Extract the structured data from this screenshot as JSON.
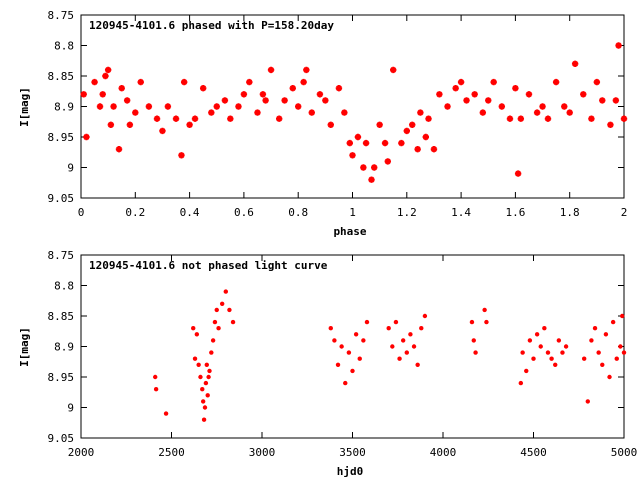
{
  "charts": [
    {
      "id": "phased",
      "title": "120945-4101.6 phased with P=158.20day",
      "xlabel": "phase",
      "ylabel": "I[mag]",
      "xticks": [
        "0",
        "0.2",
        "0.4",
        "0.6",
        "0.8",
        "1",
        "1.2",
        "1.4",
        "1.6",
        "1.8",
        "2"
      ],
      "yticks": [
        "8.75",
        "8.8",
        "8.85",
        "8.9",
        "8.95",
        "9",
        "9.05"
      ]
    },
    {
      "id": "unphased",
      "title": "120945-4101.6 not phased light curve",
      "xlabel": "hjd0",
      "ylabel": "I[mag]",
      "xticks": [
        "2000",
        "2500",
        "3000",
        "3500",
        "4000",
        "4500",
        "5000"
      ],
      "yticks": [
        "8.75",
        "8.8",
        "8.85",
        "8.9",
        "8.95",
        "9",
        "9.05"
      ]
    }
  ],
  "chart_data": [
    {
      "type": "scatter",
      "title": "120945-4101.6 phased with P=158.20day",
      "xlabel": "phase",
      "ylabel": "I[mag]",
      "xlim": [
        0,
        2
      ],
      "ylim": [
        9.05,
        8.75
      ],
      "y_inverted": true,
      "grid": false,
      "marker_color": "#ff0000",
      "series": [
        {
          "x": [
            0.01,
            0.02,
            0.05,
            0.07,
            0.08,
            0.09,
            0.1,
            0.11,
            0.12,
            0.14,
            0.15,
            0.17,
            0.18,
            0.2,
            0.22,
            0.25,
            0.28,
            0.3,
            0.32,
            0.35,
            0.37,
            0.38,
            0.4,
            0.42,
            0.45,
            0.48,
            0.5,
            0.53,
            0.55,
            0.58,
            0.6,
            0.62,
            0.65,
            0.67,
            0.68,
            0.7,
            0.73,
            0.75,
            0.78,
            0.8,
            0.82,
            0.83,
            0.85,
            0.88,
            0.9,
            0.92,
            0.95,
            0.97,
            0.99,
            1.0,
            1.02,
            1.04,
            1.05,
            1.07,
            1.08,
            1.1,
            1.12,
            1.13,
            1.15,
            1.18,
            1.2,
            1.22,
            1.24,
            1.25,
            1.27,
            1.28,
            1.3,
            1.32,
            1.35,
            1.38,
            1.4,
            1.42,
            1.45,
            1.48,
            1.5,
            1.52,
            1.55,
            1.58,
            1.6,
            1.61,
            1.62,
            1.65,
            1.68,
            1.7,
            1.72,
            1.75,
            1.78,
            1.8,
            1.82,
            1.85,
            1.88,
            1.9,
            1.92,
            1.95,
            1.97,
            1.98,
            2.0
          ],
          "y": [
            8.88,
            8.95,
            8.86,
            8.9,
            8.88,
            8.85,
            8.84,
            8.93,
            8.9,
            8.97,
            8.87,
            8.89,
            8.93,
            8.91,
            8.86,
            8.9,
            8.92,
            8.94,
            8.9,
            8.92,
            8.98,
            8.86,
            8.93,
            8.92,
            8.87,
            8.91,
            8.9,
            8.89,
            8.92,
            8.9,
            8.88,
            8.86,
            8.91,
            8.88,
            8.89,
            8.84,
            8.92,
            8.89,
            8.87,
            8.9,
            8.86,
            8.84,
            8.91,
            8.88,
            8.89,
            8.93,
            8.87,
            8.91,
            8.96,
            8.98,
            8.95,
            9.0,
            8.96,
            9.02,
            9.0,
            8.93,
            8.96,
            8.99,
            8.84,
            8.96,
            8.94,
            8.93,
            8.97,
            8.91,
            8.95,
            8.92,
            8.97,
            8.88,
            8.9,
            8.87,
            8.86,
            8.89,
            8.88,
            8.91,
            8.89,
            8.86,
            8.9,
            8.92,
            8.87,
            9.01,
            8.92,
            8.88,
            8.91,
            8.9,
            8.92,
            8.86,
            8.9,
            8.91,
            8.83,
            8.88,
            8.92,
            8.86,
            8.89,
            8.93,
            8.89,
            8.8,
            8.92
          ]
        }
      ]
    },
    {
      "type": "scatter",
      "title": "120945-4101.6 not phased light curve",
      "xlabel": "hjd0",
      "ylabel": "I[mag]",
      "xlim": [
        2000,
        5000
      ],
      "ylim": [
        9.05,
        8.75
      ],
      "y_inverted": true,
      "grid": false,
      "marker_color": "#ff0000",
      "series": [
        {
          "x": [
            2410,
            2415,
            2470,
            2620,
            2630,
            2640,
            2650,
            2660,
            2670,
            2675,
            2680,
            2685,
            2690,
            2695,
            2700,
            2705,
            2710,
            2720,
            2730,
            2740,
            2750,
            2760,
            2780,
            2800,
            2820,
            2840,
            3380,
            3400,
            3420,
            3440,
            3460,
            3480,
            3500,
            3520,
            3540,
            3560,
            3580,
            3700,
            3720,
            3740,
            3760,
            3780,
            3800,
            3820,
            3840,
            3860,
            3880,
            3900,
            4160,
            4170,
            4180,
            4230,
            4240,
            4430,
            4440,
            4460,
            4480,
            4500,
            4520,
            4540,
            4560,
            4580,
            4600,
            4620,
            4640,
            4660,
            4680,
            4780,
            4800,
            4820,
            4840,
            4860,
            4880,
            4900,
            4920,
            4940,
            4960,
            4980,
            4990,
            5000
          ],
          "y": [
            8.95,
            8.97,
            9.01,
            8.87,
            8.92,
            8.88,
            8.93,
            8.95,
            8.97,
            8.99,
            9.02,
            9.0,
            8.96,
            8.93,
            8.98,
            8.95,
            8.94,
            8.91,
            8.89,
            8.86,
            8.84,
            8.87,
            8.83,
            8.81,
            8.84,
            8.86,
            8.87,
            8.89,
            8.93,
            8.9,
            8.96,
            8.91,
            8.94,
            8.88,
            8.92,
            8.89,
            8.86,
            8.87,
            8.9,
            8.86,
            8.92,
            8.89,
            8.91,
            8.88,
            8.9,
            8.93,
            8.87,
            8.85,
            8.86,
            8.89,
            8.91,
            8.84,
            8.86,
            8.96,
            8.91,
            8.94,
            8.89,
            8.92,
            8.88,
            8.9,
            8.87,
            8.91,
            8.92,
            8.93,
            8.89,
            8.91,
            8.9,
            8.92,
            8.99,
            8.89,
            8.87,
            8.91,
            8.93,
            8.88,
            8.95,
            8.86,
            8.92,
            8.9,
            8.85,
            8.91
          ]
        }
      ]
    }
  ]
}
